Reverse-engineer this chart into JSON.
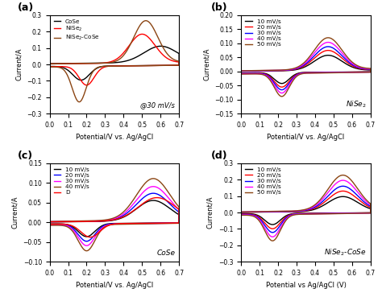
{
  "fig_size": [
    4.74,
    3.74
  ],
  "dpi": 100,
  "subplot_labels": [
    "(a)",
    "(b)",
    "(c)",
    "(d)"
  ],
  "panel_a": {
    "annotation": "@30 mV/s",
    "xlabel": "Potential/V vs. Ag/AgCl",
    "ylabel": "Current/A",
    "xlim": [
      0.0,
      0.7
    ],
    "ylim": [
      -0.3,
      0.3
    ],
    "yticks": [
      -0.3,
      -0.2,
      -0.1,
      0.0,
      0.1,
      0.2,
      0.3
    ],
    "xticks": [
      0.0,
      0.1,
      0.2,
      0.3,
      0.4,
      0.5,
      0.6,
      0.7
    ],
    "legend_labels": [
      "CoSe",
      "NiSe$_2$",
      "NiSe$_2$-CoSe"
    ],
    "colors": [
      "black",
      "red",
      "#8B4513"
    ]
  },
  "panel_b": {
    "annotation": "NiSe$_2$",
    "xlabel": "Potential/V vs. Ag/AgCl",
    "ylabel": "Current/A",
    "xlim": [
      0.0,
      0.7
    ],
    "ylim": [
      -0.15,
      0.2
    ],
    "yticks": [
      -0.15,
      -0.1,
      -0.05,
      0.0,
      0.05,
      0.1,
      0.15,
      0.2
    ],
    "xticks": [
      0.0,
      0.1,
      0.2,
      0.3,
      0.4,
      0.5,
      0.6,
      0.7
    ],
    "legend_labels": [
      "10 mV/s",
      "20 mV/s",
      "30 mV/s",
      "40 mV/s",
      "50 mV/s"
    ],
    "colors": [
      "black",
      "red",
      "blue",
      "magenta",
      "#8B4513"
    ]
  },
  "panel_c": {
    "annotation": "CoSe",
    "xlabel": "Potential/V vs. Ag/AgCl",
    "ylabel": "Current/A",
    "xlim": [
      0.0,
      0.7
    ],
    "ylim": [
      -0.1,
      0.15
    ],
    "yticks": [
      -0.1,
      -0.05,
      0.0,
      0.05,
      0.1,
      0.15
    ],
    "xticks": [
      0.0,
      0.1,
      0.2,
      0.3,
      0.4,
      0.5,
      0.6,
      0.7
    ],
    "legend_labels": [
      "10 mV/s",
      "20 mV/s",
      "30 mV/s",
      "40 mV/s",
      "D"
    ],
    "colors": [
      "black",
      "blue",
      "magenta",
      "#8B4513",
      "red"
    ]
  },
  "panel_d": {
    "annotation": "NiSe$_2$-CoSe",
    "xlabel": "Potential vs Ag/AgCl (V)",
    "ylabel": "Current/A",
    "xlim": [
      0.0,
      0.7
    ],
    "ylim": [
      -0.3,
      0.3
    ],
    "yticks": [
      -0.3,
      -0.2,
      -0.1,
      0.0,
      0.1,
      0.2,
      0.3
    ],
    "xticks": [
      0.0,
      0.1,
      0.2,
      0.3,
      0.4,
      0.5,
      0.6,
      0.7
    ],
    "legend_labels": [
      "10 mV/s",
      "20 mV/s",
      "30 mV/s",
      "40 mV/s",
      "50 mV/s"
    ],
    "colors": [
      "black",
      "red",
      "blue",
      "magenta",
      "#8B4513"
    ]
  }
}
